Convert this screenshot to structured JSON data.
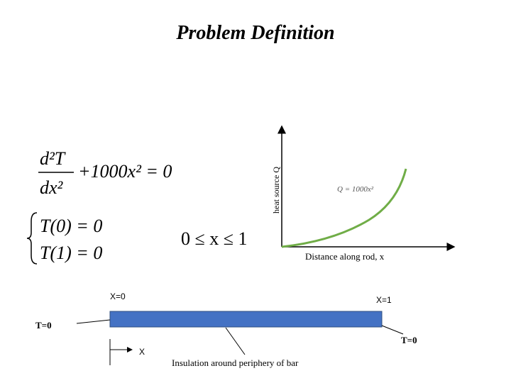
{
  "title": "Problem Definition",
  "equation": {
    "numerator": "d²T",
    "denominator": "dx²",
    "rest": "+1000x² = 0"
  },
  "boundary_conditions": [
    "T(0) = 0",
    "T(1) = 0"
  ],
  "domain": "0 ≤ x ≤ 1",
  "plot": {
    "y_label": "heat source Q",
    "x_label": "Distance along rod, x",
    "curve_label": "Q = 1000x²"
  },
  "rod": {
    "left_end": "X=0",
    "right_end": "X=1",
    "left_temp": "T=0",
    "right_temp": "T=0",
    "axis_label": "X",
    "insulation_note": "Insulation around periphery of bar"
  }
}
